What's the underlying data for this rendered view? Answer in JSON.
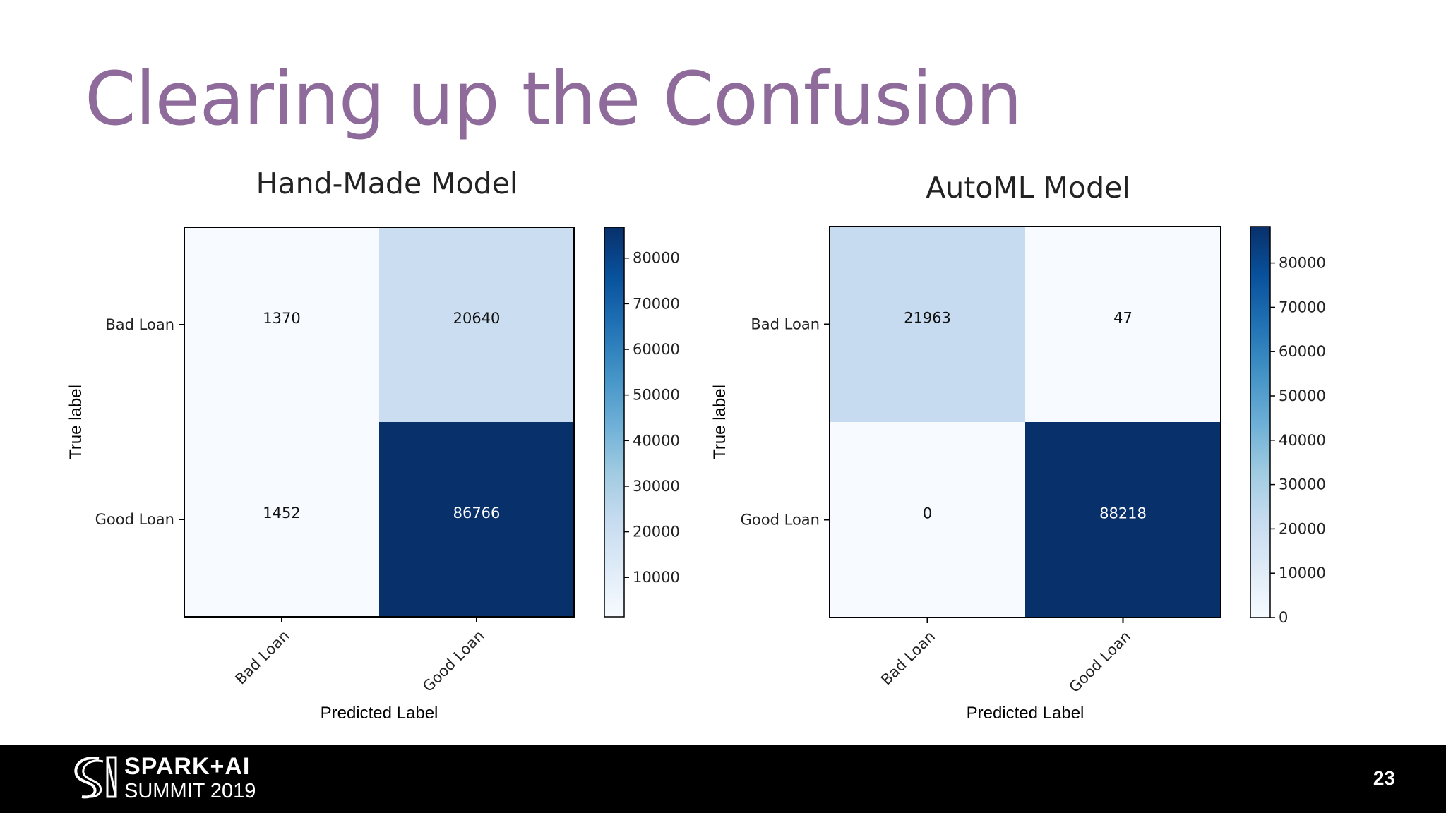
{
  "slide": {
    "title": "Clearing up the Confusion",
    "page_number": "23"
  },
  "footer": {
    "logo_line1": "SPARK+AI",
    "logo_line2": "SUMMIT 2019"
  },
  "colors": {
    "title": "#8e6b9a",
    "cmap": [
      "#f7fbff",
      "#deebf7",
      "#c6dbef",
      "#9ecae1",
      "#6baed6",
      "#4292c6",
      "#2171b5",
      "#08519c",
      "#08306b"
    ],
    "footer_bg": "#000000"
  },
  "chart_data": [
    {
      "type": "heatmap",
      "title": "Hand-Made Model",
      "xlabel": "Predicted Label",
      "ylabel": "True label",
      "x_categories": [
        "Bad Loan",
        "Good Loan"
      ],
      "y_categories": [
        "Bad Loan",
        "Good Loan"
      ],
      "values": [
        [
          1370,
          20640
        ],
        [
          1452,
          86766
        ]
      ],
      "colorbar": {
        "min": 1370,
        "max": 86766,
        "ticks": [
          10000,
          20000,
          30000,
          40000,
          50000,
          60000,
          70000,
          80000
        ]
      }
    },
    {
      "type": "heatmap",
      "title": "AutoML Model",
      "xlabel": "Predicted Label",
      "ylabel": "True label",
      "x_categories": [
        "Bad Loan",
        "Good Loan"
      ],
      "y_categories": [
        "Bad Loan",
        "Good Loan"
      ],
      "values": [
        [
          21963,
          47
        ],
        [
          0,
          88218
        ]
      ],
      "colorbar": {
        "min": 0,
        "max": 88218,
        "ticks": [
          0,
          10000,
          20000,
          30000,
          40000,
          50000,
          60000,
          70000,
          80000
        ]
      }
    }
  ]
}
